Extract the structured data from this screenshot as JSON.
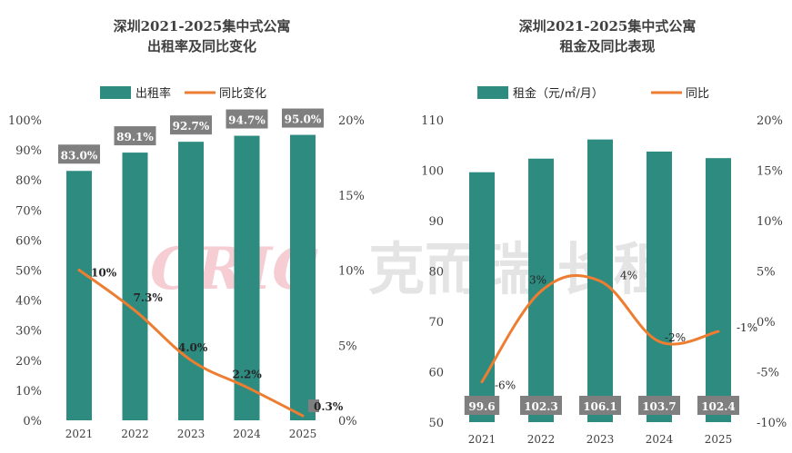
{
  "watermark": {
    "logo": "CRIC",
    "text": "克而瑞·长租"
  },
  "charts": [
    {
      "id": "occupancy",
      "title_line1": "深圳2021-2025集中式公寓",
      "title_line2": "出租率及同比变化",
      "legend_bar": "出租率",
      "legend_line": "同比变化",
      "y_left_ticks": [
        "0%",
        "10%",
        "20%",
        "30%",
        "40%",
        "50%",
        "60%",
        "70%",
        "80%",
        "90%",
        "100%"
      ],
      "y_right_ticks": [
        "0%",
        "5%",
        "10%",
        "15%",
        "20%"
      ]
    },
    {
      "id": "rent",
      "title_line1": "深圳2021-2025集中式公寓",
      "title_line2": "租金及同比表现",
      "legend_bar": "租金（元/㎡/月）",
      "legend_line": "同比",
      "y_left_ticks": [
        "50",
        "60",
        "70",
        "80",
        "90",
        "100",
        "110"
      ],
      "y_right_ticks": [
        "-10%",
        "-5%",
        "0%",
        "5%",
        "10%",
        "15%",
        "20%"
      ]
    }
  ],
  "chart_data": [
    {
      "type": "bar",
      "title": "深圳2021-2025集中式公寓出租率及同比变化",
      "categories": [
        "2021",
        "2022",
        "2023",
        "2024",
        "2025"
      ],
      "series": [
        {
          "name": "出租率",
          "axis": "left",
          "type": "bar",
          "values": [
            83.0,
            89.1,
            92.7,
            94.7,
            95.0
          ],
          "labels": [
            "83.0%",
            "89.1%",
            "92.7%",
            "94.7%",
            "95.0%"
          ]
        },
        {
          "name": "同比变化",
          "axis": "right",
          "type": "line",
          "values": [
            10.0,
            7.3,
            4.0,
            2.2,
            0.3
          ],
          "labels": [
            "10%",
            "7.3%",
            "4.0%",
            "2.2%",
            "0.3%"
          ]
        }
      ],
      "ylim_left": [
        0,
        100
      ],
      "ylim_right": [
        0,
        20
      ],
      "colors": {
        "bar": "#2e8b80",
        "line": "#ed7d31",
        "label_box": "#7f7f7f"
      }
    },
    {
      "type": "bar",
      "title": "深圳2021-2025集中式公寓租金及同比表现",
      "categories": [
        "2021",
        "2022",
        "2023",
        "2024",
        "2025"
      ],
      "series": [
        {
          "name": "租金（元/㎡/月）",
          "axis": "left",
          "type": "bar",
          "values": [
            99.6,
            102.3,
            106.1,
            103.7,
            102.4
          ],
          "labels": [
            "99.6",
            "102.3",
            "106.1",
            "103.7",
            "102.4"
          ]
        },
        {
          "name": "同比",
          "axis": "right",
          "type": "line",
          "values": [
            -6,
            3,
            4,
            -2,
            -1
          ],
          "labels": [
            "-6%",
            "3%",
            "4%",
            "-2%",
            "-1%"
          ]
        }
      ],
      "ylim_left": [
        50,
        110
      ],
      "ylim_right": [
        -10,
        20
      ],
      "colors": {
        "bar": "#2e8b80",
        "line": "#ed7d31",
        "label_box": "#7f7f7f"
      }
    }
  ]
}
